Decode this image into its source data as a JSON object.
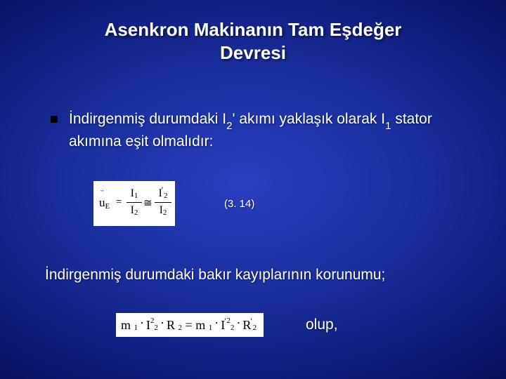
{
  "title_line1": "Asenkron Makinanın Tam Eşdeğer",
  "title_line2": "Devresi",
  "bullet": {
    "pre": "İndirgenmiş durumdaki I",
    "sub1": "2",
    "mid1": "' akımı yaklaşık olarak I",
    "sub2": "1",
    "post": " stator akımına eşit olmalıdır:"
  },
  "eq1": {
    "u_char": "u",
    "u_sub": "E",
    "equals": "=",
    "frac1_num_sym": "I",
    "frac1_num_sub": "1",
    "frac1_den_sym": "I",
    "frac1_den_sub": "2",
    "approx": "≅",
    "frac2_num_sym": "I",
    "frac2_num_sub": "2",
    "frac2_den_sym": "I",
    "frac2_den_sub": "2",
    "prime": "'"
  },
  "eq1_ref": "(3. 14)",
  "line2": "İndirgenmiş durumdaki bakır kayıplarının korunumu;",
  "eq2": {
    "m": "m",
    "one": "1",
    "I": "I",
    "two": "2",
    "R": "R",
    "dot": "·",
    "eq": "=",
    "prime": "'"
  },
  "olup": "olup,"
}
